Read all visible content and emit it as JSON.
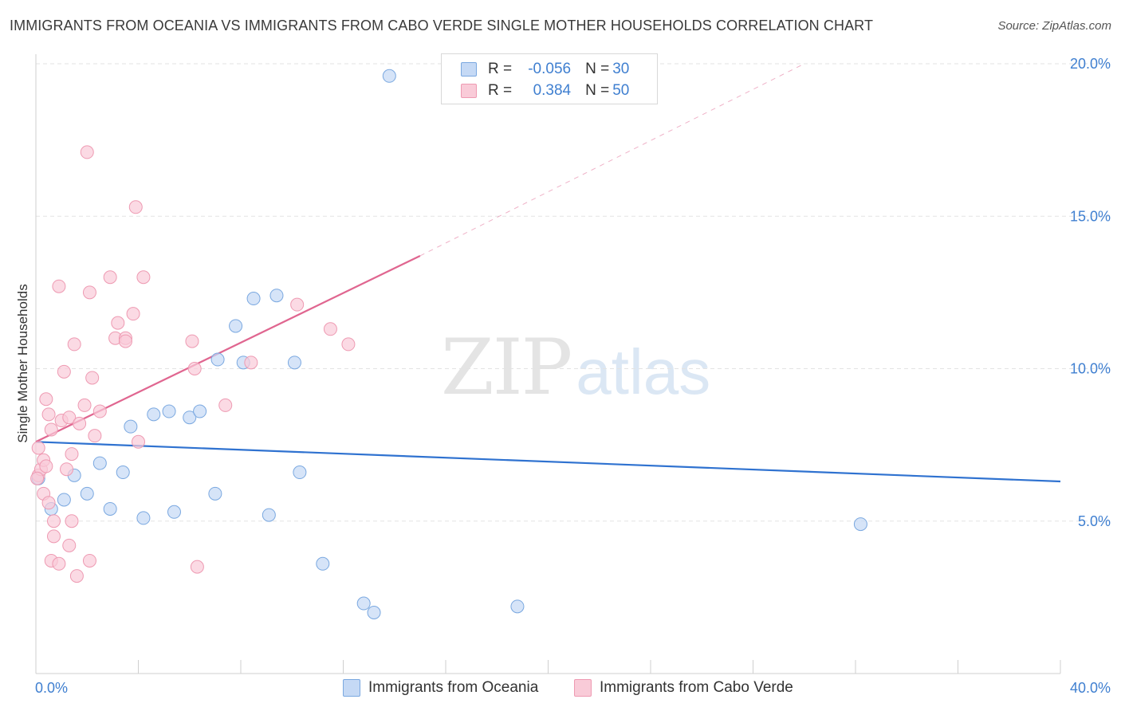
{
  "header": {
    "title": "IMMIGRANTS FROM OCEANIA VS IMMIGRANTS FROM CABO VERDE SINGLE MOTHER HOUSEHOLDS CORRELATION CHART",
    "source": "Source: ZipAtlas.com"
  },
  "watermark": {
    "zip": "ZIP",
    "atlas": "atlas"
  },
  "legend": {
    "rows": [
      {
        "r_label": "R =",
        "r_value": "-0.056",
        "n_label": "N =",
        "n_value": "30"
      },
      {
        "r_label": "R =",
        "r_value": "0.384",
        "n_label": "N =",
        "n_value": "50"
      }
    ]
  },
  "colors": {
    "oceania_fill": "#c5d9f5",
    "oceania_stroke": "#7aa8e0",
    "oceania_line": "#2f72d0",
    "caboverde_fill": "#f9cbd8",
    "caboverde_stroke": "#ee9ab2",
    "caboverde_line": "#e06690",
    "tick_text": "#3f7fd0",
    "grid": "#e3e3e3"
  },
  "chart_data": {
    "type": "scatter",
    "title": "IMMIGRANTS FROM OCEANIA VS IMMIGRANTS FROM CABO VERDE SINGLE MOTHER HOUSEHOLDS CORRELATION CHART",
    "xlabel": "",
    "ylabel": "Single Mother Households",
    "xlim": [
      0,
      40
    ],
    "ylim": [
      0,
      20
    ],
    "x_tick_labels": [
      "0.0%",
      "40.0%"
    ],
    "y_ticks": [
      5,
      10,
      15,
      20
    ],
    "y_tick_labels": [
      "5.0%",
      "10.0%",
      "15.0%",
      "20.0%"
    ],
    "grid": true,
    "legend_position": "bottom",
    "series": [
      {
        "name": "Immigrants from Oceania",
        "R": -0.056,
        "N": 30,
        "trend": {
          "x": [
            0,
            40
          ],
          "y": [
            7.6,
            6.3
          ],
          "dashed_extension": false
        },
        "points": [
          [
            0.1,
            6.4
          ],
          [
            0.6,
            5.4
          ],
          [
            1.1,
            5.7
          ],
          [
            1.5,
            6.5
          ],
          [
            2.0,
            5.9
          ],
          [
            2.5,
            6.9
          ],
          [
            2.9,
            5.4
          ],
          [
            3.4,
            6.6
          ],
          [
            3.7,
            8.1
          ],
          [
            4.2,
            5.1
          ],
          [
            4.6,
            8.5
          ],
          [
            5.2,
            8.6
          ],
          [
            5.4,
            5.3
          ],
          [
            6.0,
            8.4
          ],
          [
            6.4,
            8.6
          ],
          [
            7.0,
            5.9
          ],
          [
            7.1,
            10.3
          ],
          [
            7.8,
            11.4
          ],
          [
            8.1,
            10.2
          ],
          [
            8.5,
            12.3
          ],
          [
            9.1,
            5.2
          ],
          [
            9.4,
            12.4
          ],
          [
            10.1,
            10.2
          ],
          [
            10.3,
            6.6
          ],
          [
            11.2,
            3.6
          ],
          [
            12.8,
            2.3
          ],
          [
            13.2,
            2.0
          ],
          [
            13.8,
            19.6
          ],
          [
            18.8,
            2.2
          ],
          [
            32.2,
            4.9
          ]
        ]
      },
      {
        "name": "Immigrants from Cabo Verde",
        "R": 0.384,
        "N": 50,
        "trend": {
          "x": [
            0,
            15
          ],
          "y": [
            7.6,
            13.7
          ],
          "dashed_extension": true,
          "dash_to": [
            30,
            20
          ]
        },
        "points": [
          [
            0.1,
            7.4
          ],
          [
            0.1,
            6.5
          ],
          [
            0.2,
            6.7
          ],
          [
            0.3,
            7.0
          ],
          [
            0.3,
            5.9
          ],
          [
            0.4,
            6.8
          ],
          [
            0.4,
            9.0
          ],
          [
            0.5,
            5.6
          ],
          [
            0.5,
            8.5
          ],
          [
            0.6,
            8.0
          ],
          [
            0.7,
            5.0
          ],
          [
            0.7,
            4.5
          ],
          [
            0.6,
            3.7
          ],
          [
            0.9,
            3.6
          ],
          [
            0.9,
            12.7
          ],
          [
            1.0,
            8.3
          ],
          [
            1.1,
            9.9
          ],
          [
            1.2,
            6.7
          ],
          [
            1.3,
            8.4
          ],
          [
            1.3,
            4.2
          ],
          [
            1.4,
            7.2
          ],
          [
            1.4,
            5.0
          ],
          [
            1.5,
            10.8
          ],
          [
            1.6,
            3.2
          ],
          [
            1.7,
            8.2
          ],
          [
            1.9,
            8.8
          ],
          [
            2.0,
            17.1
          ],
          [
            2.1,
            12.5
          ],
          [
            2.1,
            3.7
          ],
          [
            2.2,
            9.7
          ],
          [
            2.3,
            7.8
          ],
          [
            2.5,
            8.6
          ],
          [
            2.9,
            13.0
          ],
          [
            3.1,
            11.0
          ],
          [
            3.2,
            11.5
          ],
          [
            3.5,
            11.0
          ],
          [
            3.5,
            10.9
          ],
          [
            3.8,
            11.8
          ],
          [
            3.9,
            15.3
          ],
          [
            4.0,
            7.6
          ],
          [
            4.2,
            13.0
          ],
          [
            6.1,
            10.9
          ],
          [
            6.2,
            10.0
          ],
          [
            6.3,
            3.5
          ],
          [
            7.4,
            8.8
          ],
          [
            8.4,
            10.2
          ],
          [
            10.2,
            12.1
          ],
          [
            11.5,
            11.3
          ],
          [
            12.2,
            10.8
          ],
          [
            0.05,
            6.4
          ]
        ]
      }
    ]
  }
}
